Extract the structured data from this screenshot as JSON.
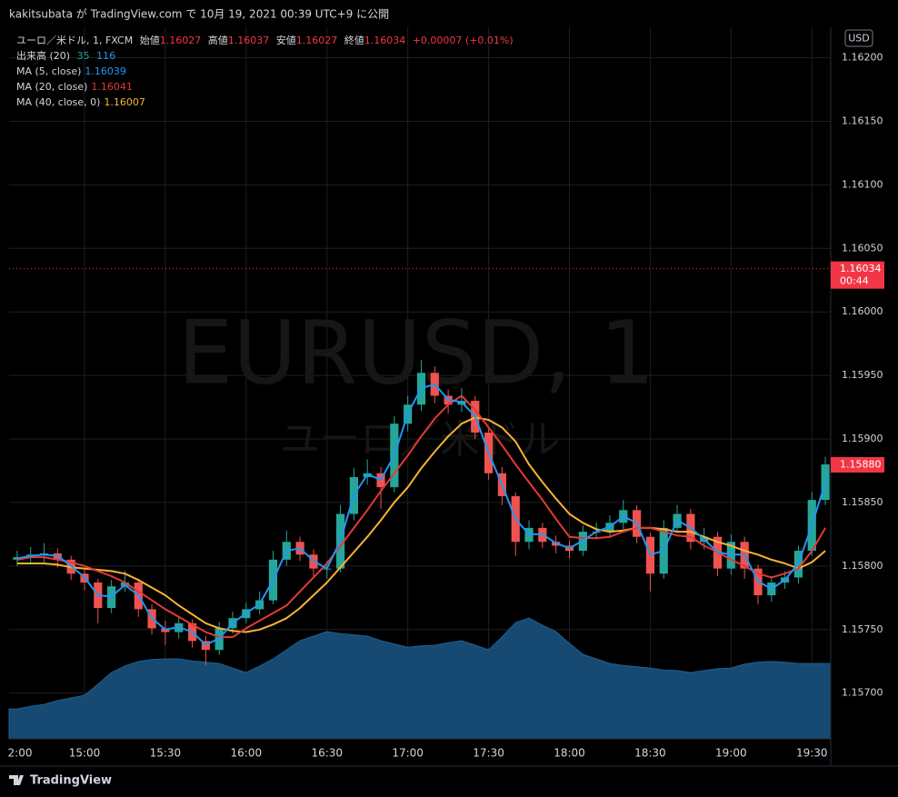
{
  "header": {
    "text": "kakitsubata が TradingView.com で 10月 19, 2021 00:39 UTC+9 に公開"
  },
  "footer": {
    "brand": "TradingView"
  },
  "chart_data": {
    "type": "candlestick",
    "currency": "USD",
    "watermark": {
      "symbol": "EURUSD, 1",
      "name": "ユーロ／米ドル"
    },
    "legend": {
      "symbol": "ユーロ／米ドル, 1, FXCM",
      "open_label": "始値",
      "open": 1.16027,
      "high_label": "高値",
      "high": 1.16037,
      "low_label": "安値",
      "low": 1.16027,
      "close_label": "終値",
      "close": 1.16034,
      "change": "+0.00007 (+0.01%)"
    },
    "up_color": "#26a69a",
    "down_color": "#ef5350",
    "grid": true,
    "xlim": [
      "14:32",
      "19:37"
    ],
    "xticks": [
      {
        "value": "14:30",
        "label": "2:00"
      },
      "15:00",
      "15:30",
      "16:00",
      "16:30",
      "17:00",
      "17:30",
      "18:00",
      "18:30",
      "19:00",
      "19:30"
    ],
    "ylim": [
      1.15664,
      1.16224
    ],
    "yticks": [
      {
        "value": 1.157,
        "label": "1.15700"
      },
      {
        "value": 1.1575,
        "label": "1.15750"
      },
      {
        "value": 1.158,
        "label": "1.15800"
      },
      {
        "value": 1.1585,
        "label": "1.15850"
      },
      {
        "value": 1.159,
        "label": "1.15900"
      },
      {
        "value": 1.1595,
        "label": "1.15950"
      },
      {
        "value": 1.16,
        "label": "1.16000"
      },
      {
        "value": 1.1605,
        "label": "1.16050"
      },
      {
        "value": 1.161,
        "label": "1.16100"
      },
      {
        "value": 1.1615,
        "label": "1.16150"
      },
      {
        "value": 1.162,
        "label": "1.16200"
      }
    ],
    "x": [
      "14:35",
      "14:40",
      "14:45",
      "14:50",
      "14:55",
      "15:00",
      "15:05",
      "15:10",
      "15:15",
      "15:20",
      "15:25",
      "15:30",
      "15:35",
      "15:40",
      "15:45",
      "15:50",
      "15:55",
      "16:00",
      "16:05",
      "16:10",
      "16:15",
      "16:20",
      "16:25",
      "16:30",
      "16:35",
      "16:40",
      "16:45",
      "16:50",
      "16:55",
      "17:00",
      "17:05",
      "17:10",
      "17:15",
      "17:20",
      "17:25",
      "17:30",
      "17:35",
      "17:40",
      "17:45",
      "17:50",
      "17:55",
      "18:00",
      "18:05",
      "18:10",
      "18:15",
      "18:20",
      "18:25",
      "18:30",
      "18:35",
      "18:40",
      "18:45",
      "18:50",
      "18:55",
      "19:00",
      "19:05",
      "19:10",
      "19:15",
      "19:20",
      "19:25",
      "19:30",
      "19:35"
    ],
    "open": [
      1.15805,
      1.15807,
      1.15809,
      1.1581,
      1.15805,
      1.15794,
      1.15787,
      1.15767,
      1.15784,
      1.15787,
      1.15766,
      1.15751,
      1.15748,
      1.15755,
      1.15741,
      1.15734,
      1.15751,
      1.15759,
      1.15766,
      1.15773,
      1.15805,
      1.15819,
      1.15809,
      1.15798,
      1.15798,
      1.15841,
      1.1587,
      1.15873,
      1.15862,
      1.15912,
      1.15927,
      1.15952,
      1.15934,
      1.15927,
      1.1593,
      1.15905,
      1.15873,
      1.15855,
      1.15819,
      1.1583,
      1.15819,
      1.15816,
      1.15812,
      1.15827,
      1.15827,
      1.15834,
      1.15844,
      1.15823,
      1.15794,
      1.1583,
      1.15841,
      1.15819,
      1.15823,
      1.15798,
      1.15819,
      1.15798,
      1.15777,
      1.15787,
      1.15791,
      1.15812,
      1.15852
    ],
    "high": [
      1.15812,
      1.15815,
      1.15818,
      1.15814,
      1.15808,
      1.15798,
      1.1579,
      1.15789,
      1.15796,
      1.1579,
      1.1577,
      1.15757,
      1.1576,
      1.15758,
      1.15745,
      1.15756,
      1.15764,
      1.15771,
      1.1578,
      1.15812,
      1.15828,
      1.15823,
      1.15813,
      1.15804,
      1.15848,
      1.15877,
      1.15884,
      1.15878,
      1.15918,
      1.15934,
      1.15962,
      1.15957,
      1.15939,
      1.1594,
      1.15934,
      1.15908,
      1.15878,
      1.15858,
      1.15836,
      1.15834,
      1.15824,
      1.1582,
      1.15832,
      1.15834,
      1.1584,
      1.15852,
      1.15848,
      1.15826,
      1.15836,
      1.15848,
      1.15845,
      1.1583,
      1.15827,
      1.15825,
      1.15823,
      1.15801,
      1.15792,
      1.15796,
      1.15816,
      1.15858,
      1.15886
    ],
    "low": [
      1.158,
      1.15802,
      1.15803,
      1.15799,
      1.15789,
      1.15781,
      1.15755,
      1.15763,
      1.1578,
      1.1576,
      1.15746,
      1.15738,
      1.15743,
      1.15736,
      1.15722,
      1.1573,
      1.15747,
      1.15755,
      1.15762,
      1.1577,
      1.158,
      1.15804,
      1.15792,
      1.1579,
      1.15795,
      1.15836,
      1.15864,
      1.15845,
      1.15858,
      1.15906,
      1.15922,
      1.15928,
      1.1592,
      1.15921,
      1.159,
      1.15868,
      1.15848,
      1.15808,
      1.15813,
      1.15814,
      1.1581,
      1.15806,
      1.15808,
      1.15821,
      1.15822,
      1.15829,
      1.15818,
      1.1578,
      1.1579,
      1.15826,
      1.15813,
      1.15813,
      1.15792,
      1.15793,
      1.1579,
      1.1577,
      1.15772,
      1.15782,
      1.15786,
      1.15808,
      1.15848
    ],
    "close": [
      1.15807,
      1.15809,
      1.1581,
      1.15805,
      1.15794,
      1.15787,
      1.15767,
      1.15784,
      1.15787,
      1.15766,
      1.15751,
      1.15748,
      1.15755,
      1.15741,
      1.15734,
      1.15751,
      1.15759,
      1.15766,
      1.15773,
      1.15805,
      1.15819,
      1.15809,
      1.15798,
      1.15798,
      1.15841,
      1.1587,
      1.15873,
      1.15862,
      1.15912,
      1.15927,
      1.15952,
      1.15934,
      1.15927,
      1.1593,
      1.15905,
      1.15873,
      1.15855,
      1.15819,
      1.1583,
      1.15819,
      1.15816,
      1.15812,
      1.15827,
      1.15827,
      1.15834,
      1.15844,
      1.15823,
      1.15794,
      1.1583,
      1.15841,
      1.15819,
      1.15823,
      1.15798,
      1.15819,
      1.15798,
      1.15777,
      1.15787,
      1.15791,
      1.15812,
      1.15852,
      1.1588
    ],
    "volume": {
      "name": "出来高 (20)",
      "color": "#164a72",
      "legend_value": 35,
      "legend_value_color": "#26a69a",
      "legend_ma": 116,
      "legend_ma_color": "#2196f3",
      "values": [
        46,
        50,
        53,
        59,
        63,
        67,
        84,
        102,
        112,
        119,
        122,
        123,
        123,
        120,
        118,
        116,
        109,
        102,
        112,
        123,
        137,
        151,
        158,
        165,
        162,
        160,
        158,
        151,
        146,
        141,
        143,
        144,
        148,
        151,
        144,
        137,
        157,
        179,
        186,
        175,
        165,
        147,
        130,
        123,
        116,
        113,
        111,
        109,
        106,
        105,
        102,
        105,
        108,
        109,
        115,
        118,
        119,
        118,
        116,
        116,
        116
      ]
    },
    "ma_series": [
      {
        "name": "MA (5, close)",
        "color": "#2196f3",
        "legend_value": 1.16039,
        "values": [
          1.15806,
          1.15808,
          1.15809,
          1.15808,
          1.158,
          1.15791,
          1.15777,
          1.15776,
          1.15785,
          1.15777,
          1.15759,
          1.1575,
          1.15752,
          1.15748,
          1.15738,
          1.15743,
          1.15755,
          1.15763,
          1.1577,
          1.15789,
          1.15812,
          1.15814,
          1.15804,
          1.15798,
          1.1582,
          1.15856,
          1.15872,
          1.15868,
          1.15887,
          1.1592,
          1.1594,
          1.15943,
          1.15931,
          1.15929,
          1.15918,
          1.15889,
          1.15864,
          1.15837,
          1.15825,
          1.15825,
          1.15818,
          1.15814,
          1.1582,
          1.15827,
          1.15831,
          1.15839,
          1.15834,
          1.15809,
          1.15812,
          1.15836,
          1.1583,
          1.15821,
          1.15811,
          1.15809,
          1.15809,
          1.15788,
          1.15782,
          1.15789,
          1.15802,
          1.15832,
          1.15866
        ]
      },
      {
        "name": "MA (20, close)",
        "color": "#e53935",
        "legend_value": 1.16041,
        "values": [
          1.15805,
          1.15807,
          1.15807,
          1.15805,
          1.15803,
          1.158,
          1.15796,
          1.15792,
          1.15787,
          1.1578,
          1.15773,
          1.15766,
          1.1576,
          1.15754,
          1.15748,
          1.15744,
          1.15744,
          1.15751,
          1.15757,
          1.15763,
          1.15769,
          1.1578,
          1.15791,
          1.15802,
          1.15816,
          1.1583,
          1.15844,
          1.15859,
          1.15873,
          1.15887,
          1.15902,
          1.15916,
          1.15927,
          1.15934,
          1.15923,
          1.15909,
          1.15895,
          1.1588,
          1.15866,
          1.15852,
          1.15837,
          1.15823,
          1.15822,
          1.15822,
          1.15823,
          1.15827,
          1.1583,
          1.1583,
          1.15827,
          1.15824,
          1.15823,
          1.15816,
          1.15811,
          1.15805,
          1.158,
          1.15794,
          1.15791,
          1.15794,
          1.15798,
          1.15812,
          1.1583
        ]
      },
      {
        "name": "MA (40, close, 0)",
        "color": "#f9b233",
        "legend_value": 1.16007,
        "values": [
          1.15802,
          1.15802,
          1.15802,
          1.15801,
          1.15799,
          1.15798,
          1.15797,
          1.15796,
          1.15794,
          1.15789,
          1.15783,
          1.15777,
          1.15769,
          1.15762,
          1.15755,
          1.15751,
          1.15749,
          1.15748,
          1.1575,
          1.15754,
          1.15759,
          1.15767,
          1.15777,
          1.15787,
          1.15799,
          1.15811,
          1.15823,
          1.15836,
          1.1585,
          1.15862,
          1.15877,
          1.1589,
          1.15902,
          1.15912,
          1.15917,
          1.15915,
          1.15909,
          1.15898,
          1.1588,
          1.15866,
          1.15853,
          1.15841,
          1.15834,
          1.15829,
          1.15827,
          1.15828,
          1.1583,
          1.1583,
          1.15829,
          1.15827,
          1.15827,
          1.15823,
          1.15819,
          1.15816,
          1.15812,
          1.15809,
          1.15805,
          1.15802,
          1.15798,
          1.15803,
          1.15812
        ]
      }
    ],
    "price_lines": [
      {
        "value": 1.16034,
        "label": "1.16034",
        "time": "00:44",
        "color": "#f23645",
        "dotted_line": true
      },
      {
        "value": 1.1588,
        "label": "1.15880",
        "color": "#f23645",
        "dotted_line": false
      }
    ]
  }
}
